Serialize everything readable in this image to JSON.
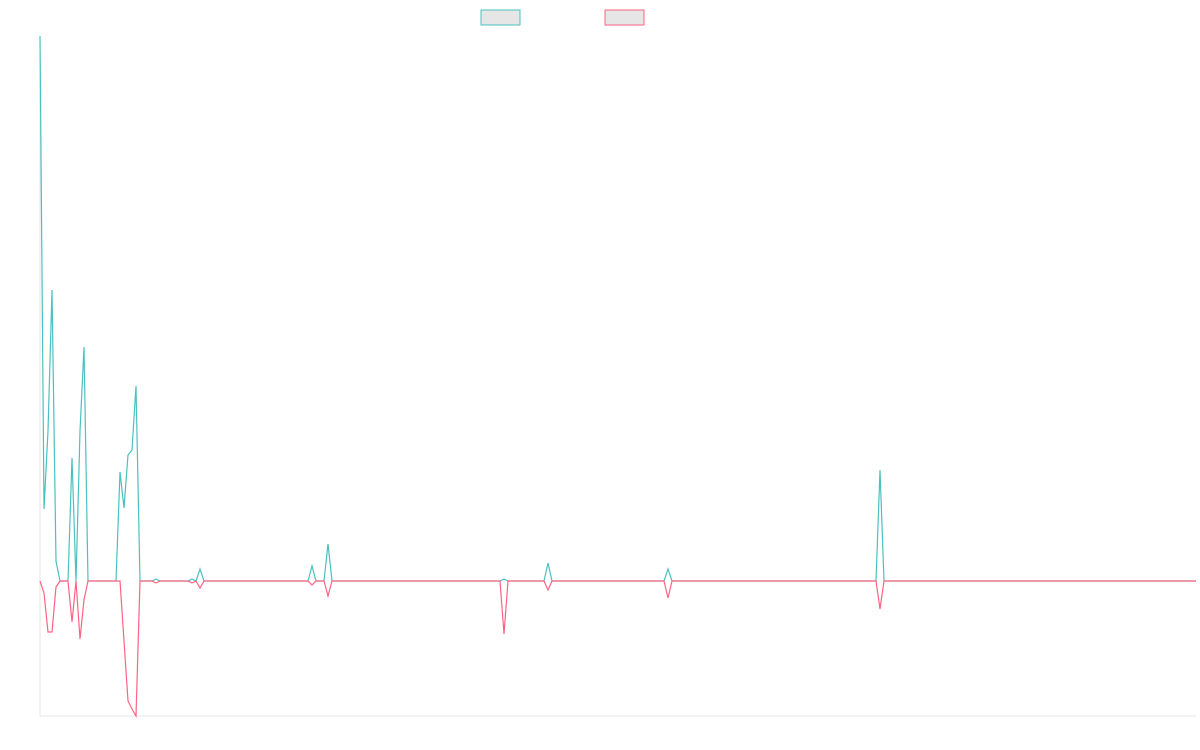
{
  "chart_data": {
    "type": "line",
    "x": [
      0,
      1,
      2,
      3,
      4,
      5,
      7,
      8,
      9,
      10,
      11,
      12,
      19,
      20,
      21,
      22,
      23,
      24,
      25,
      28,
      29,
      30,
      37,
      38,
      39,
      40,
      41,
      67,
      68,
      69,
      71,
      72,
      73,
      115,
      116,
      117,
      126,
      127,
      128,
      156,
      157,
      158,
      209,
      210,
      211,
      289
    ],
    "series": [
      {
        "color": "#4bc0c0",
        "values": [
          545,
          72,
          150,
          291,
          20,
          0,
          0,
          123,
          0,
          150,
          234,
          0,
          0,
          109,
          73,
          126,
          131,
          195,
          0,
          0,
          2,
          0,
          0,
          2,
          0,
          12,
          0,
          0,
          15,
          0,
          0,
          37,
          0,
          0,
          2,
          0,
          0,
          18,
          0,
          0,
          12,
          0,
          0,
          111,
          0,
          0
        ]
      },
      {
        "color": "#ff6384",
        "values": [
          0,
          -12,
          -51,
          -51,
          -6,
          0,
          0,
          -41,
          0,
          -58,
          -19,
          0,
          0,
          0,
          -60,
          -120,
          -128,
          -135,
          0,
          0,
          -2,
          0,
          0,
          -2,
          0,
          -7,
          0,
          0,
          -4,
          0,
          0,
          -15,
          0,
          0,
          -53,
          0,
          0,
          -9,
          0,
          0,
          -17,
          0,
          0,
          -28,
          0,
          0
        ]
      }
    ],
    "xlim": [
      0,
      289
    ],
    "ylim": [
      -135,
      545
    ]
  }
}
